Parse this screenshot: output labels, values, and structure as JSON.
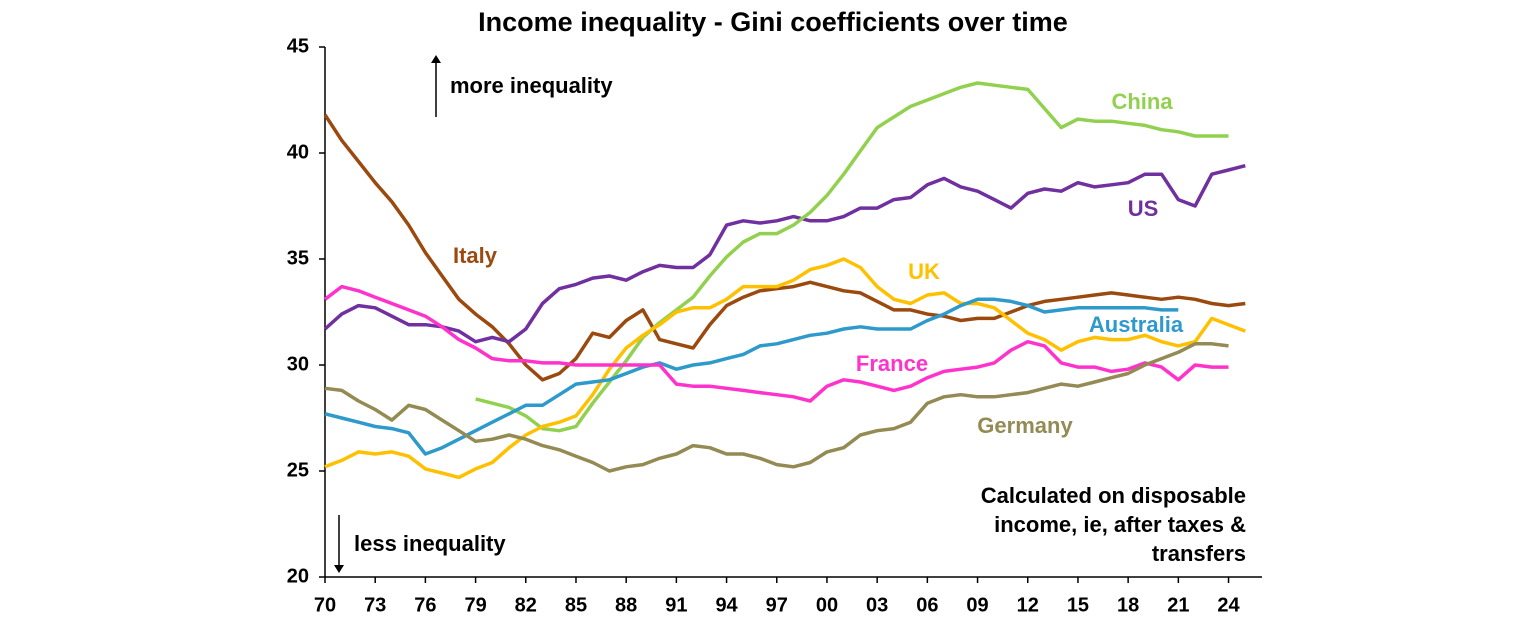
{
  "chart_data": {
    "type": "line",
    "title": "Income inequality - Gini coefficients over time",
    "x": [
      1970,
      1971,
      1972,
      1973,
      1974,
      1975,
      1976,
      1977,
      1978,
      1979,
      1980,
      1981,
      1982,
      1983,
      1984,
      1985,
      1986,
      1987,
      1988,
      1989,
      1990,
      1991,
      1992,
      1993,
      1994,
      1995,
      1996,
      1997,
      1998,
      1999,
      2000,
      2001,
      2002,
      2003,
      2004,
      2005,
      2006,
      2007,
      2008,
      2009,
      2010,
      2011,
      2012,
      2013,
      2014,
      2015,
      2016,
      2017,
      2018,
      2019,
      2020,
      2021,
      2022,
      2023,
      2024,
      2025
    ],
    "xlim": [
      1970,
      2026
    ],
    "xticks": [
      {
        "value": 1970,
        "label": "70"
      },
      {
        "value": 1973,
        "label": "73"
      },
      {
        "value": 1976,
        "label": "76"
      },
      {
        "value": 1979,
        "label": "79"
      },
      {
        "value": 1982,
        "label": "82"
      },
      {
        "value": 1985,
        "label": "85"
      },
      {
        "value": 1988,
        "label": "88"
      },
      {
        "value": 1991,
        "label": "91"
      },
      {
        "value": 1994,
        "label": "94"
      },
      {
        "value": 1997,
        "label": "97"
      },
      {
        "value": 2000,
        "label": "00"
      },
      {
        "value": 2003,
        "label": "03"
      },
      {
        "value": 2006,
        "label": "06"
      },
      {
        "value": 2009,
        "label": "09"
      },
      {
        "value": 2012,
        "label": "12"
      },
      {
        "value": 2015,
        "label": "15"
      },
      {
        "value": 2018,
        "label": "18"
      },
      {
        "value": 2021,
        "label": "21"
      },
      {
        "value": 2024,
        "label": "24"
      }
    ],
    "ylim": [
      20,
      45
    ],
    "yticks": [
      20,
      25,
      30,
      35,
      40,
      45
    ],
    "grid": false,
    "annotations": [
      "more inequality",
      "less inequality"
    ],
    "note": [
      "Calculated on disposable",
      "income, ie, after taxes &",
      "transfers"
    ],
    "series": [
      {
        "name": "Italy",
        "color": "#9b4a0f",
        "values": [
          41.8,
          40.6,
          39.6,
          38.6,
          37.7,
          36.6,
          35.3,
          34.2,
          33.1,
          32.4,
          31.8,
          31.0,
          30.0,
          29.3,
          29.6,
          30.3,
          31.5,
          31.3,
          32.1,
          32.6,
          31.2,
          31.0,
          30.8,
          31.9,
          32.8,
          33.2,
          33.5,
          33.6,
          33.7,
          33.9,
          33.7,
          33.5,
          33.4,
          33.0,
          32.6,
          32.6,
          32.4,
          32.3,
          32.1,
          32.2,
          32.2,
          32.5,
          32.8,
          33.0,
          33.1,
          33.2,
          33.3,
          33.4,
          33.3,
          33.2,
          33.1,
          33.2,
          33.1,
          32.9,
          32.8,
          32.9
        ]
      },
      {
        "name": "US",
        "color": "#7030a0",
        "values": [
          31.7,
          32.4,
          32.8,
          32.7,
          32.3,
          31.9,
          31.9,
          31.8,
          31.6,
          31.1,
          31.3,
          31.1,
          31.7,
          32.9,
          33.6,
          33.8,
          34.1,
          34.2,
          34.0,
          34.4,
          34.7,
          34.6,
          34.6,
          35.2,
          36.6,
          36.8,
          36.7,
          36.8,
          37.0,
          36.8,
          36.8,
          37.0,
          37.4,
          37.4,
          37.8,
          37.9,
          38.5,
          38.8,
          38.4,
          38.2,
          37.8,
          37.4,
          38.1,
          38.3,
          38.2,
          38.6,
          38.4,
          38.5,
          38.6,
          39.0,
          39.0,
          37.8,
          37.5,
          39.0,
          39.2,
          39.4
        ]
      },
      {
        "name": "China",
        "color": "#92d050",
        "values": [
          null,
          null,
          null,
          null,
          null,
          null,
          null,
          null,
          null,
          28.4,
          28.2,
          28.0,
          27.6,
          27.0,
          26.9,
          27.1,
          28.2,
          29.2,
          30.2,
          31.3,
          32.0,
          32.6,
          33.2,
          34.2,
          35.1,
          35.8,
          36.2,
          36.2,
          36.6,
          37.2,
          38.0,
          39.0,
          40.1,
          41.2,
          41.7,
          42.2,
          42.5,
          42.8,
          43.1,
          43.3,
          43.2,
          43.1,
          43.0,
          42.1,
          41.2,
          41.6,
          41.5,
          41.5,
          41.4,
          41.3,
          41.1,
          41.0,
          40.8,
          40.8,
          40.8,
          null
        ]
      },
      {
        "name": "UK",
        "color": "#ffc000",
        "values": [
          25.2,
          25.5,
          25.9,
          25.8,
          25.9,
          25.7,
          25.1,
          24.9,
          24.7,
          25.1,
          25.4,
          26.1,
          26.7,
          27.1,
          27.3,
          27.6,
          28.6,
          29.8,
          30.8,
          31.4,
          31.9,
          32.5,
          32.7,
          32.7,
          33.1,
          33.7,
          33.7,
          33.7,
          34.0,
          34.5,
          34.7,
          35.0,
          34.6,
          33.7,
          33.1,
          32.9,
          33.3,
          33.4,
          32.9,
          32.9,
          32.7,
          32.1,
          31.5,
          31.2,
          30.7,
          31.1,
          31.3,
          31.2,
          31.2,
          31.4,
          31.1,
          30.9,
          31.1,
          32.2,
          31.9,
          31.6
        ]
      },
      {
        "name": "Australia",
        "color": "#2e9acb",
        "values": [
          27.7,
          27.5,
          27.3,
          27.1,
          27.0,
          26.8,
          25.8,
          26.1,
          26.5,
          26.9,
          27.3,
          27.7,
          28.1,
          28.1,
          28.6,
          29.1,
          29.2,
          29.3,
          29.6,
          29.9,
          30.1,
          29.8,
          30.0,
          30.1,
          30.3,
          30.5,
          30.9,
          31.0,
          31.2,
          31.4,
          31.5,
          31.7,
          31.8,
          31.7,
          31.7,
          31.7,
          32.1,
          32.4,
          32.8,
          33.1,
          33.1,
          33.0,
          32.8,
          32.5,
          32.6,
          32.7,
          32.7,
          32.7,
          32.7,
          32.7,
          32.6,
          32.6,
          null,
          null,
          null,
          null
        ]
      },
      {
        "name": "France",
        "color": "#ff33cc",
        "values": [
          33.1,
          33.7,
          33.5,
          33.2,
          32.9,
          32.6,
          32.3,
          31.8,
          31.2,
          30.8,
          30.3,
          30.2,
          30.2,
          30.1,
          30.1,
          30.0,
          30.0,
          30.0,
          30.0,
          30.0,
          30.0,
          29.1,
          29.0,
          29.0,
          28.9,
          28.8,
          28.7,
          28.6,
          28.5,
          28.3,
          29.0,
          29.3,
          29.2,
          29.0,
          28.8,
          29.0,
          29.4,
          29.7,
          29.8,
          29.9,
          30.1,
          30.7,
          31.1,
          30.9,
          30.1,
          29.9,
          29.9,
          29.7,
          29.8,
          30.1,
          29.9,
          29.3,
          30.0,
          29.9,
          29.9,
          null
        ]
      },
      {
        "name": "Germany",
        "color": "#948a54",
        "values": [
          28.9,
          28.8,
          28.3,
          27.9,
          27.4,
          28.1,
          27.9,
          27.4,
          26.9,
          26.4,
          26.5,
          26.7,
          26.5,
          26.2,
          26.0,
          25.7,
          25.4,
          25.0,
          25.2,
          25.3,
          25.6,
          25.8,
          26.2,
          26.1,
          25.8,
          25.8,
          25.6,
          25.3,
          25.2,
          25.4,
          25.9,
          26.1,
          26.7,
          26.9,
          27.0,
          27.3,
          28.2,
          28.5,
          28.6,
          28.5,
          28.5,
          28.6,
          28.7,
          28.9,
          29.1,
          29.0,
          29.2,
          29.4,
          29.6,
          30.0,
          30.3,
          30.6,
          31.0,
          31.0,
          30.9,
          null
        ]
      }
    ]
  }
}
